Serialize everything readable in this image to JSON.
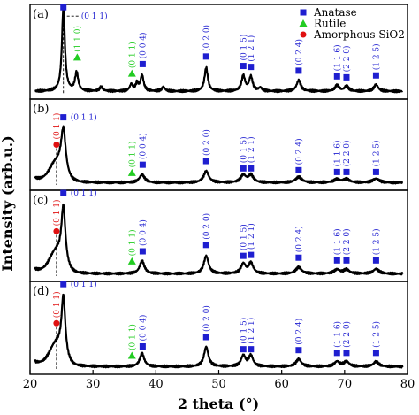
{
  "chart_data": {
    "type": "line",
    "xlabel": "2 theta (°)",
    "ylabel": "Intensity (arb.u.)",
    "xlim": [
      20,
      80
    ],
    "xticks": [
      20,
      30,
      40,
      50,
      60,
      70,
      80
    ],
    "xtick_labels": [
      "20",
      "30",
      "40",
      "50",
      "60",
      "70",
      "80"
    ],
    "legend": {
      "position": "top-right",
      "items": [
        {
          "label": "Anatase",
          "marker": "square",
          "color": "#1f1fd0"
        },
        {
          "label": "Rutile",
          "marker": "triangle",
          "color": "#22cc22"
        },
        {
          "label": "Amorphous SiO2",
          "marker": "circle",
          "color": "#e01010"
        }
      ]
    },
    "colors": {
      "trace": "#000000",
      "anatase": "#1f1fd0",
      "rutile": "#22cc22",
      "sio2": "#e01010",
      "hkl_anatase": "#1f1fd0",
      "hkl_rutile": "#22cc22",
      "hkl_sio2": "#e01010"
    },
    "panels": [
      {
        "label": "(a)",
        "baseline": 0.05,
        "broad_hump": null,
        "peaks": [
          {
            "x": 25.3,
            "h": 1.0,
            "w": 0.28
          },
          {
            "x": 27.4,
            "h": 0.22,
            "w": 0.3
          },
          {
            "x": 31.3,
            "h": 0.05,
            "w": 0.3
          },
          {
            "x": 36.1,
            "h": 0.08,
            "w": 0.3
          },
          {
            "x": 37.0,
            "h": 0.09,
            "w": 0.25
          },
          {
            "x": 37.8,
            "h": 0.19,
            "w": 0.3
          },
          {
            "x": 41.2,
            "h": 0.05,
            "w": 0.3
          },
          {
            "x": 48.0,
            "h": 0.28,
            "w": 0.32
          },
          {
            "x": 53.9,
            "h": 0.18,
            "w": 0.35
          },
          {
            "x": 55.1,
            "h": 0.17,
            "w": 0.33
          },
          {
            "x": 56.6,
            "h": 0.04,
            "w": 0.3
          },
          {
            "x": 62.7,
            "h": 0.13,
            "w": 0.4
          },
          {
            "x": 68.8,
            "h": 0.07,
            "w": 0.4
          },
          {
            "x": 70.3,
            "h": 0.06,
            "w": 0.4
          },
          {
            "x": 75.0,
            "h": 0.08,
            "w": 0.4
          }
        ],
        "markers": [
          {
            "type": "anatase",
            "x": 25.3,
            "yf": 0.97,
            "hkl": "(0 1 1)",
            "hkl_dir": "right"
          },
          {
            "type": "rutile",
            "x": 27.5,
            "yf": 0.44,
            "hkl": "(1 1 0)",
            "hkl_dir": "up"
          },
          {
            "type": "rutile",
            "x": 36.2,
            "yf": 0.27,
            "hkl": "(0 1 1)",
            "hkl_dir": "up"
          },
          {
            "type": "anatase",
            "x": 37.9,
            "yf": 0.37,
            "hkl": "(0 0 4)",
            "hkl_dir": "up"
          },
          {
            "type": "anatase",
            "x": 48.0,
            "yf": 0.45,
            "hkl": "(0 2 0)",
            "hkl_dir": "up"
          },
          {
            "type": "anatase",
            "x": 53.9,
            "yf": 0.35,
            "hkl": "(0 1 5)",
            "hkl_dir": "up"
          },
          {
            "type": "anatase",
            "x": 55.1,
            "yf": 0.34,
            "hkl": "(1 2 1)",
            "hkl_dir": "up"
          },
          {
            "type": "anatase",
            "x": 62.7,
            "yf": 0.3,
            "hkl": "(0 2 4)",
            "hkl_dir": "up"
          },
          {
            "type": "anatase",
            "x": 68.8,
            "yf": 0.24,
            "hkl": "(1 1 6)",
            "hkl_dir": "up"
          },
          {
            "type": "anatase",
            "x": 70.3,
            "yf": 0.23,
            "hkl": "(2 2 0)",
            "hkl_dir": "up"
          },
          {
            "type": "anatase",
            "x": 75.0,
            "yf": 0.25,
            "hkl": "(1 2 5)",
            "hkl_dir": "up"
          }
        ]
      },
      {
        "label": "(b)",
        "baseline": 0.05,
        "broad_hump": {
          "x": 24.2,
          "h": 0.22,
          "w": 1.5
        },
        "peaks": [
          {
            "x": 25.3,
            "h": 0.55,
            "w": 0.45
          },
          {
            "x": 37.8,
            "h": 0.1,
            "w": 0.5
          },
          {
            "x": 48.0,
            "h": 0.14,
            "w": 0.5
          },
          {
            "x": 53.9,
            "h": 0.09,
            "w": 0.5
          },
          {
            "x": 55.1,
            "h": 0.09,
            "w": 0.5
          },
          {
            "x": 62.7,
            "h": 0.07,
            "w": 0.6
          },
          {
            "x": 68.8,
            "h": 0.04,
            "w": 0.6
          },
          {
            "x": 70.3,
            "h": 0.04,
            "w": 0.6
          },
          {
            "x": 75.0,
            "h": 0.05,
            "w": 0.6
          }
        ],
        "markers": [
          {
            "type": "sio2",
            "x": 24.2,
            "yf": 0.5,
            "hkl": "(0 1 1)",
            "hkl_dir": "up"
          },
          {
            "type": "anatase",
            "x": 25.3,
            "yf": 0.8,
            "hkl": "(0 1 1)",
            "hkl_dir": "right"
          },
          {
            "type": "rutile",
            "x": 36.2,
            "yf": 0.19,
            "hkl": "(0 1 1)",
            "hkl_dir": "up"
          },
          {
            "type": "anatase",
            "x": 37.9,
            "yf": 0.28,
            "hkl": "(0 0 4)",
            "hkl_dir": "up"
          },
          {
            "type": "anatase",
            "x": 48.0,
            "yf": 0.32,
            "hkl": "(0 2 0)",
            "hkl_dir": "up"
          },
          {
            "type": "anatase",
            "x": 53.9,
            "yf": 0.24,
            "hkl": "(0 1 5)",
            "hkl_dir": "up"
          },
          {
            "type": "anatase",
            "x": 55.1,
            "yf": 0.24,
            "hkl": "(1 2 1)",
            "hkl_dir": "up"
          },
          {
            "type": "anatase",
            "x": 62.7,
            "yf": 0.22,
            "hkl": "(0 2 4)",
            "hkl_dir": "up"
          },
          {
            "type": "anatase",
            "x": 68.8,
            "yf": 0.2,
            "hkl": "(1 1 6)",
            "hkl_dir": "up"
          },
          {
            "type": "anatase",
            "x": 70.3,
            "yf": 0.2,
            "hkl": "(2 2 0)",
            "hkl_dir": "up"
          },
          {
            "type": "anatase",
            "x": 75.0,
            "yf": 0.2,
            "hkl": "(1 2 5)",
            "hkl_dir": "up"
          }
        ]
      },
      {
        "label": "(c)",
        "baseline": 0.05,
        "broad_hump": {
          "x": 24.2,
          "h": 0.25,
          "w": 1.5
        },
        "peaks": [
          {
            "x": 25.3,
            "h": 0.7,
            "w": 0.38
          },
          {
            "x": 37.8,
            "h": 0.16,
            "w": 0.45
          },
          {
            "x": 48.0,
            "h": 0.22,
            "w": 0.45
          },
          {
            "x": 53.9,
            "h": 0.12,
            "w": 0.45
          },
          {
            "x": 55.1,
            "h": 0.13,
            "w": 0.45
          },
          {
            "x": 62.7,
            "h": 0.08,
            "w": 0.55
          },
          {
            "x": 68.8,
            "h": 0.05,
            "w": 0.55
          },
          {
            "x": 70.3,
            "h": 0.05,
            "w": 0.55
          },
          {
            "x": 75.0,
            "h": 0.06,
            "w": 0.55
          }
        ],
        "markers": [
          {
            "type": "sio2",
            "x": 24.2,
            "yf": 0.55,
            "hkl": "(0 1 1)",
            "hkl_dir": "up"
          },
          {
            "type": "anatase",
            "x": 25.3,
            "yf": 0.97,
            "hkl": "(0 1 1)",
            "hkl_dir": "right"
          },
          {
            "type": "rutile",
            "x": 36.2,
            "yf": 0.22,
            "hkl": "(0 1 1)",
            "hkl_dir": "up"
          },
          {
            "type": "anatase",
            "x": 37.9,
            "yf": 0.33,
            "hkl": "(0 0 4)",
            "hkl_dir": "up"
          },
          {
            "type": "anatase",
            "x": 48.0,
            "yf": 0.4,
            "hkl": "(0 2 0)",
            "hkl_dir": "up"
          },
          {
            "type": "anatase",
            "x": 53.9,
            "yf": 0.28,
            "hkl": "(0 1 5)",
            "hkl_dir": "up"
          },
          {
            "type": "anatase",
            "x": 55.1,
            "yf": 0.29,
            "hkl": "(1 2 1)",
            "hkl_dir": "up"
          },
          {
            "type": "anatase",
            "x": 62.7,
            "yf": 0.26,
            "hkl": "(0 2 4)",
            "hkl_dir": "up"
          },
          {
            "type": "anatase",
            "x": 68.8,
            "yf": 0.23,
            "hkl": "(1 1 6)",
            "hkl_dir": "up"
          },
          {
            "type": "anatase",
            "x": 70.3,
            "yf": 0.23,
            "hkl": "(2 2 0)",
            "hkl_dir": "up"
          },
          {
            "type": "anatase",
            "x": 75.0,
            "yf": 0.23,
            "hkl": "(1 2 5)",
            "hkl_dir": "up"
          }
        ]
      },
      {
        "label": "(d)",
        "baseline": 0.05,
        "broad_hump": {
          "x": 24.2,
          "h": 0.25,
          "w": 1.5
        },
        "peaks": [
          {
            "x": 25.3,
            "h": 0.72,
            "w": 0.36
          },
          {
            "x": 37.8,
            "h": 0.16,
            "w": 0.42
          },
          {
            "x": 48.0,
            "h": 0.24,
            "w": 0.42
          },
          {
            "x": 53.9,
            "h": 0.13,
            "w": 0.42
          },
          {
            "x": 55.1,
            "h": 0.13,
            "w": 0.42
          },
          {
            "x": 62.7,
            "h": 0.09,
            "w": 0.5
          },
          {
            "x": 68.8,
            "h": 0.06,
            "w": 0.5
          },
          {
            "x": 70.3,
            "h": 0.06,
            "w": 0.5
          },
          {
            "x": 75.0,
            "h": 0.06,
            "w": 0.5
          }
        ],
        "markers": [
          {
            "type": "sio2",
            "x": 24.2,
            "yf": 0.55,
            "hkl": "(0 1 1)",
            "hkl_dir": "up"
          },
          {
            "type": "anatase",
            "x": 25.3,
            "yf": 0.97,
            "hkl": "(0 1 1)",
            "hkl_dir": "right"
          },
          {
            "type": "rutile",
            "x": 36.2,
            "yf": 0.2,
            "hkl": "(0 1 1)",
            "hkl_dir": "up"
          },
          {
            "type": "anatase",
            "x": 37.9,
            "yf": 0.3,
            "hkl": "(0 0 4)",
            "hkl_dir": "up"
          },
          {
            "type": "anatase",
            "x": 48.0,
            "yf": 0.4,
            "hkl": "(0 2 0)",
            "hkl_dir": "up"
          },
          {
            "type": "anatase",
            "x": 53.9,
            "yf": 0.27,
            "hkl": "(0 1 5)",
            "hkl_dir": "up"
          },
          {
            "type": "anatase",
            "x": 55.1,
            "yf": 0.27,
            "hkl": "(1 2 1)",
            "hkl_dir": "up"
          },
          {
            "type": "anatase",
            "x": 62.7,
            "yf": 0.26,
            "hkl": "(0 2 4)",
            "hkl_dir": "up"
          },
          {
            "type": "anatase",
            "x": 68.8,
            "yf": 0.23,
            "hkl": "(1 1 6)",
            "hkl_dir": "up"
          },
          {
            "type": "anatase",
            "x": 70.3,
            "yf": 0.23,
            "hkl": "(2 2 0)",
            "hkl_dir": "up"
          },
          {
            "type": "anatase",
            "x": 75.0,
            "yf": 0.23,
            "hkl": "(1 2 5)",
            "hkl_dir": "up"
          }
        ]
      }
    ]
  }
}
